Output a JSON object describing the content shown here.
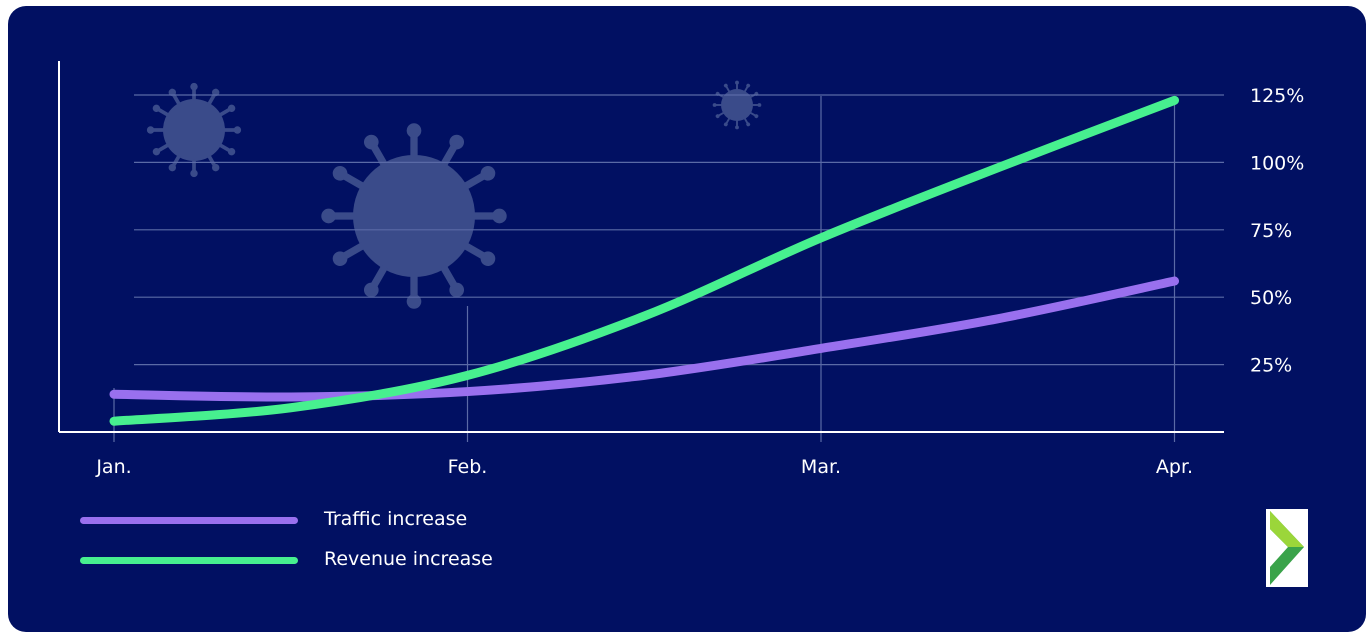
{
  "chart_data": {
    "type": "line",
    "categories": [
      "Jan.",
      "Feb.",
      "Mar.",
      "Apr."
    ],
    "yticks": [
      "25%",
      "50%",
      "75%",
      "100%",
      "125%"
    ],
    "ylim": [
      0,
      125
    ],
    "grid": true,
    "legend_position": "bottom-left",
    "series": [
      {
        "name": "Traffic increase",
        "color": "#9970ee",
        "x": [
          0,
          0.5,
          1,
          1.5,
          2,
          2.5,
          3
        ],
        "values": [
          14,
          13,
          15,
          21,
          31,
          42,
          56
        ]
      },
      {
        "name": "Revenue increase",
        "color": "#47f08f",
        "x": [
          0,
          0.5,
          1,
          1.5,
          2,
          2.5,
          3
        ],
        "values": [
          4,
          9,
          21,
          43,
          72,
          98,
          123
        ]
      }
    ]
  },
  "decor": {
    "background": "#011062",
    "icons": [
      "virus-icon",
      "virus-icon",
      "virus-icon"
    ],
    "logo": "chevron-logo"
  }
}
